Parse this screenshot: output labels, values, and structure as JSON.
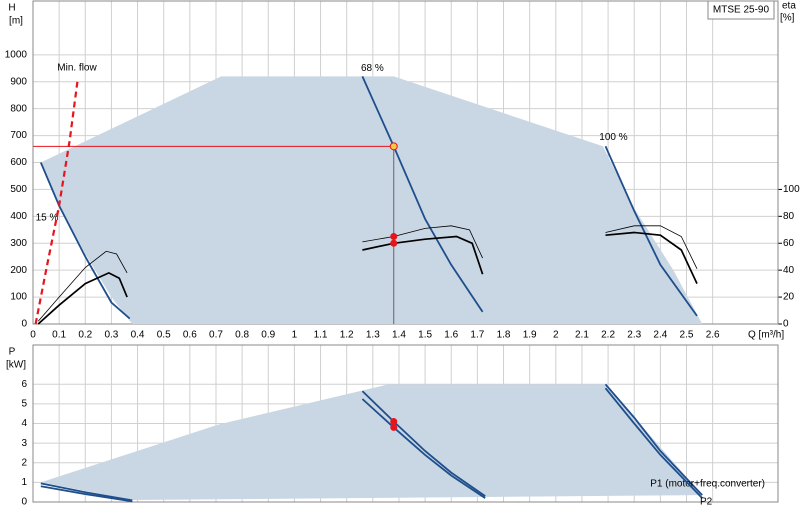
{
  "chart_data": [
    {
      "type": "line",
      "title": "MTSE 25-90",
      "xlabel": "Q [m³/h]",
      "ylabel": "H",
      "yunit": "[m]",
      "y2label": "eta",
      "y2unit": "[%]",
      "xlim": [
        0,
        2.85
      ],
      "xticks": [
        0,
        0.1,
        0.2,
        0.3,
        0.4,
        0.5,
        0.6,
        0.7,
        0.8,
        0.9,
        1,
        1.1,
        1.2,
        1.3,
        1.4,
        1.5,
        1.6,
        1.7,
        1.8,
        1.9,
        2,
        2.1,
        2.2,
        2.3,
        2.4,
        2.5,
        2.6
      ],
      "ylim": [
        0,
        1200
      ],
      "yticks": [
        0,
        100,
        200,
        300,
        400,
        500,
        600,
        700,
        800,
        900,
        1000
      ],
      "y2lim": [
        0,
        240
      ],
      "y2ticks": [
        0,
        20,
        40,
        60,
        80,
        100
      ],
      "grid": true,
      "series": [
        {
          "color": "#c9d6e3",
          "fill": true,
          "x": [
            0.03,
            0.72,
            1.38,
            2.18,
            2.3,
            2.45,
            2.56,
            0.38,
            0.3,
            0.2,
            0.1
          ],
          "values": [
            600,
            920,
            920,
            660,
            430,
            200,
            0,
            0,
            100,
            260,
            440
          ]
        },
        {
          "name": "15 %",
          "color": "#1f4e8c",
          "x": [
            0.03,
            0.1,
            0.2,
            0.3,
            0.37
          ],
          "values": [
            600,
            440,
            250,
            80,
            20
          ]
        },
        {
          "name": "68 %",
          "color": "#1f4e8c",
          "x": [
            1.26,
            1.38,
            1.5,
            1.6,
            1.72
          ],
          "values": [
            920,
            660,
            390,
            220,
            45
          ]
        },
        {
          "name": "100 %",
          "color": "#1f4e8c",
          "x": [
            2.19,
            2.3,
            2.4,
            2.54
          ],
          "values": [
            660,
            420,
            220,
            30
          ]
        },
        {
          "name": "Min. flow",
          "color": "#e8141c",
          "dash": true,
          "x": [
            0.01,
            0.05,
            0.1,
            0.14,
            0.17
          ],
          "values": [
            0,
            200,
            440,
            680,
            900
          ]
        },
        {
          "color": "#000000",
          "axis": "y2",
          "thin": true,
          "x": [
            0.02,
            0.1,
            0.2,
            0.28,
            0.32,
            0.36,
            null,
            1.26,
            1.38,
            1.5,
            1.6,
            1.67,
            1.72,
            null,
            2.19,
            2.3,
            2.4,
            2.48,
            2.54
          ],
          "values": [
            2,
            20,
            42,
            54,
            52,
            38,
            null,
            61,
            65,
            71,
            73,
            70,
            49,
            null,
            68,
            73,
            73,
            65,
            41
          ]
        },
        {
          "color": "#000000",
          "axis": "y2",
          "x": [
            0.02,
            0.1,
            0.2,
            0.29,
            0.33,
            0.36,
            null,
            1.26,
            1.38,
            1.5,
            1.62,
            1.68,
            1.72,
            null,
            2.19,
            2.3,
            2.4,
            2.48,
            2.54
          ],
          "values": [
            0,
            14,
            30,
            38,
            34,
            20,
            null,
            55,
            60,
            63,
            65,
            60,
            37,
            null,
            66,
            68,
            66,
            55,
            30
          ]
        }
      ],
      "duty_point": {
        "x": 1.38,
        "y": 660,
        "eta": [
          65,
          60
        ]
      }
    },
    {
      "type": "line",
      "ylabel": "P",
      "yunit": "[kW]",
      "xlim": [
        0,
        2.85
      ],
      "ylim": [
        0,
        8
      ],
      "yticks": [
        0,
        1,
        2,
        3,
        4,
        5,
        6
      ],
      "grid": true,
      "series": [
        {
          "color": "#c9d6e3",
          "fill": true,
          "x": [
            0.03,
            0.71,
            1.36,
            2.19,
            2.56,
            0.38
          ],
          "values": [
            1.0,
            3.95,
            6.0,
            6.0,
            0.35,
            0.1
          ]
        },
        {
          "name": "P1 (motor+freq.converter)",
          "color": "#1f4e8c",
          "x": [
            0.03,
            0.2,
            0.38,
            null,
            1.26,
            1.38,
            1.5,
            1.6,
            1.73,
            null,
            2.19,
            2.3,
            2.4,
            2.56
          ],
          "values": [
            0.95,
            0.5,
            0.08,
            null,
            5.65,
            4.1,
            2.6,
            1.5,
            0.3,
            null,
            6.0,
            4.3,
            2.6,
            0.35
          ]
        },
        {
          "name": "P2",
          "color": "#1f4e8c",
          "x": [
            0.03,
            0.2,
            0.38,
            null,
            1.26,
            1.38,
            1.5,
            1.6,
            1.73,
            null,
            2.19,
            2.3,
            2.4,
            2.56
          ],
          "values": [
            0.8,
            0.4,
            0.03,
            null,
            5.25,
            3.8,
            2.4,
            1.35,
            0.2,
            null,
            5.8,
            4.0,
            2.4,
            0.2
          ]
        }
      ],
      "duty_point": {
        "x": 1.38,
        "values": [
          4.1,
          3.8
        ]
      }
    }
  ]
}
